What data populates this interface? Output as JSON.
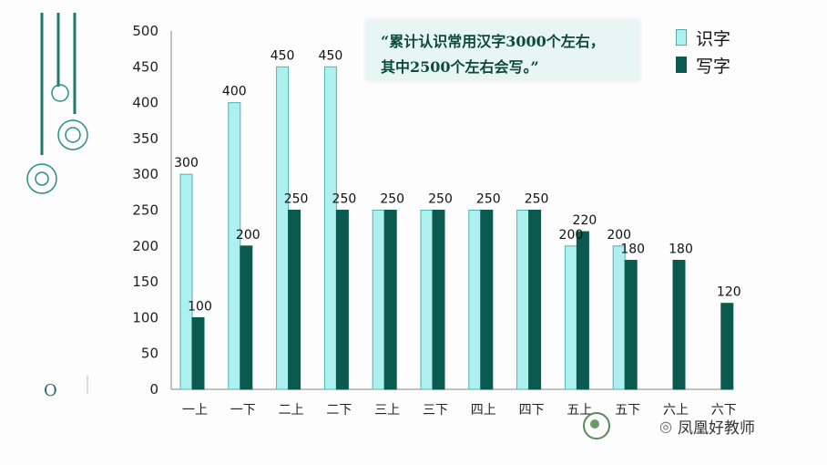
{
  "note": {
    "line1": "“累计认识常用汉字3000个左右，",
    "line2": "其中2500个左右会写。”"
  },
  "decoration": {
    "letter_o": "O"
  },
  "watermark": {
    "wechat_icon": "wechat-icon",
    "text": "凤凰好教师"
  },
  "colors": {
    "recognize": "#aef0ef",
    "recognize_border": "#4fb3b3",
    "write": "#0b5a4f",
    "deco_line": "#1e7a6c"
  },
  "chart_data": {
    "type": "bar",
    "categories": [
      "一上",
      "一下",
      "二上",
      "二下",
      "三上",
      "三下",
      "四上",
      "四下",
      "五上",
      "五下",
      "六上",
      "六下"
    ],
    "series": [
      {
        "name": "识字",
        "values": [
          300,
          400,
          450,
          450,
          250,
          250,
          250,
          250,
          200,
          200,
          null,
          null
        ],
        "labels": [
          "300",
          "400",
          "450",
          "450",
          "",
          "",
          "",
          "",
          "200",
          "200",
          "",
          ""
        ]
      },
      {
        "name": "写字",
        "values": [
          100,
          200,
          250,
          250,
          250,
          250,
          250,
          250,
          220,
          180,
          180,
          120
        ],
        "labels": [
          "100",
          "200",
          "250",
          "250",
          "250",
          "250",
          "250",
          "250",
          "220",
          "180",
          "180",
          "120"
        ]
      }
    ],
    "ylim": [
      0,
      500
    ],
    "yticks": [
      0,
      50,
      100,
      150,
      200,
      250,
      300,
      350,
      400,
      450,
      500
    ],
    "legend": "top-right",
    "grid": false
  }
}
